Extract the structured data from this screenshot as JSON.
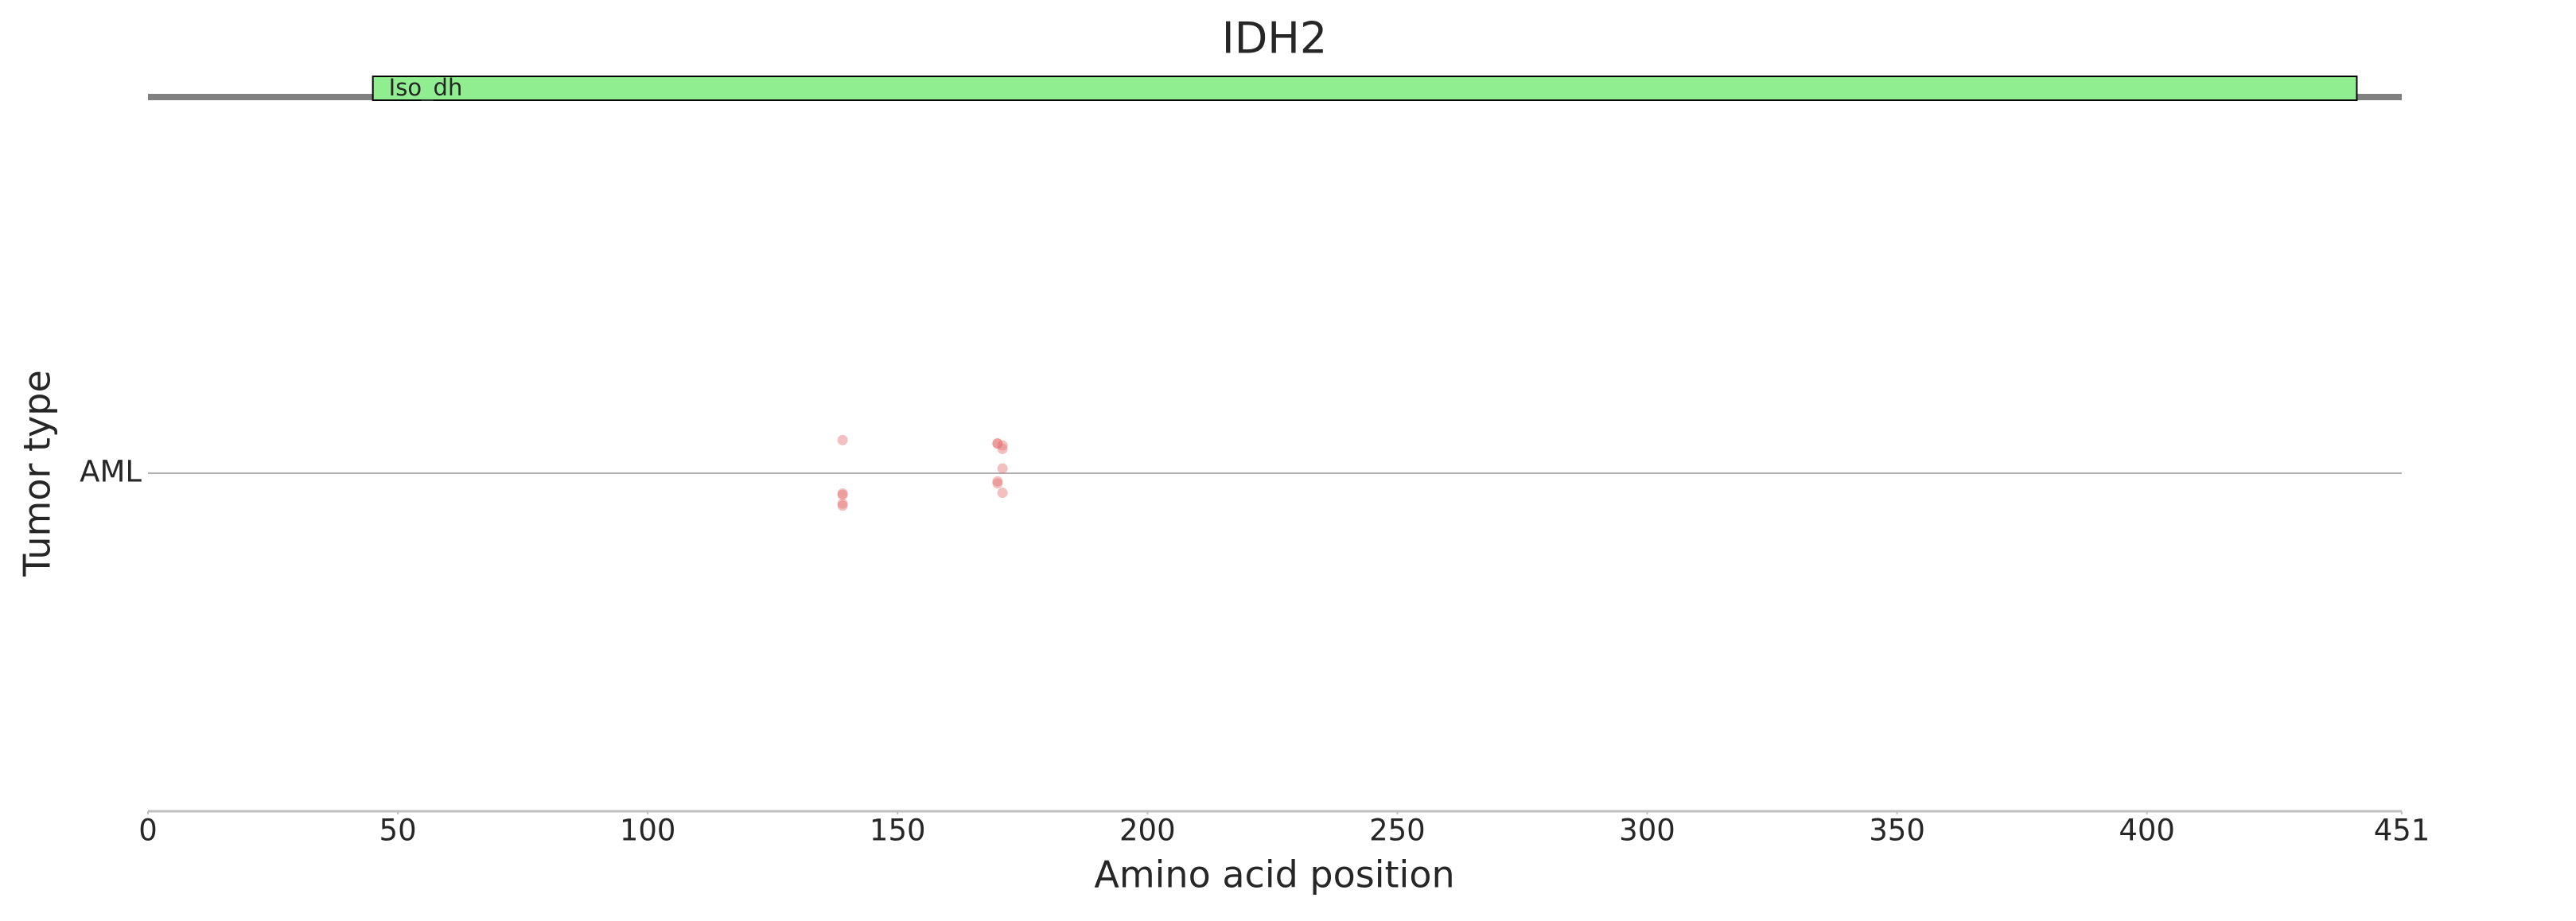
{
  "chart_data": {
    "type": "scatter",
    "title": "IDH2",
    "xlabel": "Amino acid position",
    "ylabel": "Tumor type",
    "categories": [
      "AML"
    ],
    "xlim": [
      0,
      451
    ],
    "xticks": [
      0,
      50,
      100,
      150,
      200,
      250,
      300,
      350,
      400,
      451
    ],
    "ylim": [
      -0.5,
      0.5
    ],
    "domains": [
      {
        "name": "Iso_dh",
        "start": 45,
        "end": 442,
        "color": "#90ee90"
      }
    ],
    "points": {
      "x": [
        139,
        139,
        139,
        139,
        139,
        170,
        171,
        171,
        171,
        170,
        170,
        170,
        171
      ],
      "y": [
        0.049,
        -0.03,
        -0.032,
        -0.045,
        -0.048,
        0.044,
        0.041,
        0.036,
        0.007,
        -0.012,
        -0.015,
        0.044,
        -0.029
      ],
      "color": "#e57373"
    },
    "grid": true
  }
}
